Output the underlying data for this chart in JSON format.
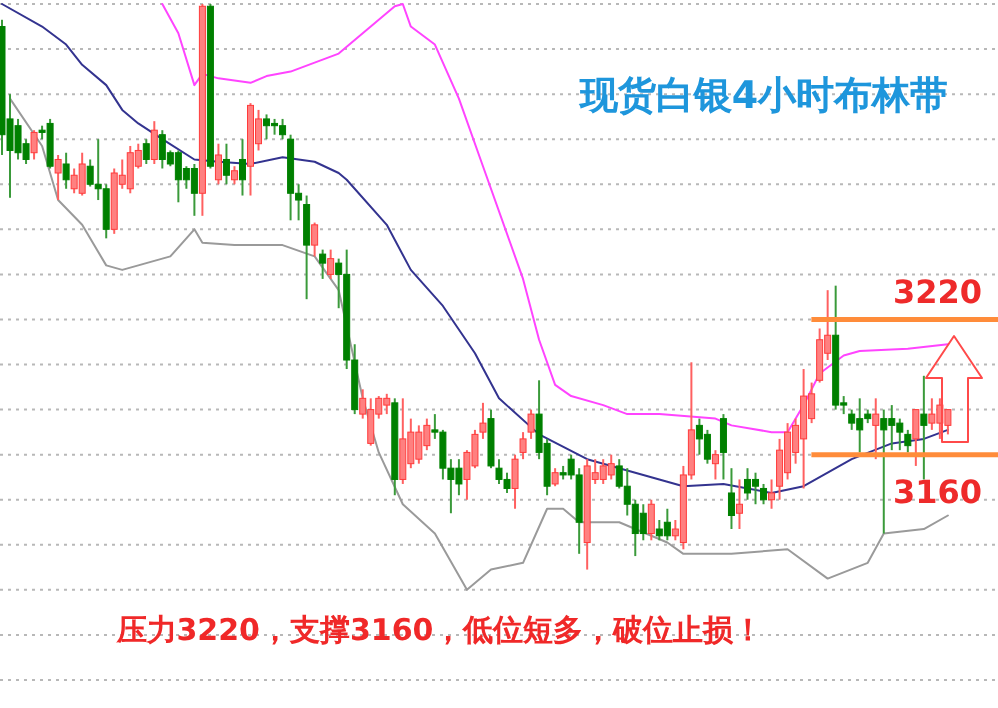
{
  "chart_data": {
    "type": "candlestick",
    "title": "现货白银4小时布林带",
    "categories": [
      null,
      null,
      null,
      null,
      null,
      null,
      null,
      null,
      null,
      null,
      null,
      null,
      null,
      null,
      null,
      null,
      null,
      null,
      null,
      null,
      null,
      null,
      null,
      null,
      null,
      null,
      null,
      null,
      null,
      null,
      null,
      null,
      null,
      null,
      null,
      null,
      null,
      null,
      null,
      null,
      null,
      null,
      null,
      null,
      null,
      null,
      null,
      null,
      null,
      null,
      null,
      null,
      null,
      null,
      null,
      null,
      null,
      null,
      null,
      null,
      null,
      null,
      null,
      null,
      null,
      null,
      null,
      null,
      null,
      null,
      null,
      null,
      null,
      null,
      null,
      null,
      null,
      null,
      null,
      null,
      null,
      null,
      null,
      null,
      null,
      null,
      null,
      null,
      null,
      null,
      null,
      null,
      null,
      null,
      null,
      null,
      null,
      null,
      null,
      null,
      null,
      null,
      null,
      null,
      null,
      null,
      null,
      null,
      null,
      null,
      null,
      null,
      null,
      null,
      null,
      null,
      null,
      null,
      null
    ],
    "ohlc": [
      [
        3350,
        3353,
        3293,
        3302
      ],
      [
        3309,
        3320,
        3274,
        3295
      ],
      [
        3306,
        3309,
        3291,
        3294
      ],
      [
        3298,
        3300,
        3289,
        3291
      ],
      [
        3294,
        3304,
        3291,
        3303
      ],
      [
        3304,
        3306,
        3300,
        3303
      ],
      [
        3307,
        3309,
        3287,
        3288
      ],
      [
        3285,
        3293,
        3273,
        3291
      ],
      [
        3289,
        3294,
        3278,
        3282
      ],
      [
        3278,
        3287,
        3276,
        3284
      ],
      [
        3276,
        3294,
        3275,
        3289
      ],
      [
        3288,
        3291,
        3279,
        3280
      ],
      [
        3280,
        3300,
        3273,
        3278
      ],
      [
        3278,
        3280,
        3256,
        3260
      ],
      [
        3260,
        3287,
        3258,
        3285
      ],
      [
        3280,
        3291,
        3278,
        3284
      ],
      [
        3278,
        3297,
        3276,
        3294
      ],
      [
        3288,
        3298,
        3287,
        3295
      ],
      [
        3298,
        3300,
        3289,
        3291
      ],
      [
        3291,
        3308,
        3289,
        3304
      ],
      [
        3302,
        3304,
        3287,
        3291
      ],
      [
        3294,
        3295,
        3288,
        3289
      ],
      [
        3294,
        3295,
        3272,
        3282
      ],
      [
        3287,
        3288,
        3278,
        3282
      ],
      [
        3287,
        3289,
        3266,
        3276
      ],
      [
        3276,
        3360,
        3266,
        3359
      ],
      [
        3359,
        3360,
        3287,
        3288
      ],
      [
        3282,
        3298,
        3280,
        3293
      ],
      [
        3291,
        3298,
        3280,
        3284
      ],
      [
        3282,
        3288,
        3280,
        3286
      ],
      [
        3291,
        3300,
        3275,
        3282
      ],
      [
        3288,
        3316,
        3275,
        3315
      ],
      [
        3298,
        3313,
        3295,
        3309
      ],
      [
        3309,
        3311,
        3300,
        3306
      ],
      [
        3307,
        3309,
        3302,
        3306
      ],
      [
        3306,
        3309,
        3300,
        3302
      ],
      [
        3300,
        3302,
        3264,
        3276
      ],
      [
        3276,
        3280,
        3264,
        3273
      ],
      [
        3271,
        3275,
        3229,
        3253
      ],
      [
        3253,
        3263,
        3248,
        3262
      ],
      [
        3249,
        3251,
        3238,
        3245
      ],
      [
        3240,
        3251,
        3238,
        3247
      ],
      [
        3245,
        3247,
        3225,
        3240
      ],
      [
        3240,
        3251,
        3198,
        3202
      ],
      [
        3202,
        3209,
        3178,
        3180
      ],
      [
        3178,
        3189,
        3176,
        3185
      ],
      [
        3165,
        3185,
        3164,
        3180
      ],
      [
        3178,
        3186,
        3176,
        3185
      ],
      [
        3182,
        3187,
        3178,
        3185
      ],
      [
        3183,
        3185,
        3142,
        3149
      ],
      [
        3149,
        3185,
        3147,
        3167
      ],
      [
        3156,
        3176,
        3154,
        3170
      ],
      [
        3158,
        3173,
        3156,
        3170
      ],
      [
        3164,
        3176,
        3162,
        3173
      ],
      [
        3171,
        3178,
        3167,
        3170
      ],
      [
        3170,
        3171,
        3149,
        3154
      ],
      [
        3154,
        3158,
        3134,
        3149
      ],
      [
        3154,
        3158,
        3142,
        3147
      ],
      [
        3149,
        3162,
        3140,
        3161
      ],
      [
        3155,
        3171,
        3154,
        3169
      ],
      [
        3170,
        3183,
        3167,
        3174
      ],
      [
        3176,
        3180,
        3154,
        3155
      ],
      [
        3154,
        3158,
        3147,
        3149
      ],
      [
        3149,
        3152,
        3143,
        3145
      ],
      [
        3145,
        3160,
        3136,
        3158
      ],
      [
        3161,
        3170,
        3158,
        3167
      ],
      [
        3170,
        3180,
        3167,
        3178
      ],
      [
        3178,
        3193,
        3158,
        3161
      ],
      [
        3165,
        3167,
        3142,
        3146
      ],
      [
        3147,
        3154,
        3146,
        3152
      ],
      [
        3152,
        3155,
        3149,
        3151
      ],
      [
        3158,
        3160,
        3149,
        3151
      ],
      [
        3151,
        3154,
        3116,
        3130
      ],
      [
        3121,
        3158,
        3109,
        3155
      ],
      [
        3149,
        3158,
        3147,
        3152
      ],
      [
        3149,
        3158,
        3147,
        3155
      ],
      [
        3151,
        3160,
        3149,
        3156
      ],
      [
        3155,
        3158,
        3145,
        3146
      ],
      [
        3146,
        3154,
        3133,
        3138
      ],
      [
        3138,
        3140,
        3115,
        3125
      ],
      [
        3134,
        3138,
        3122,
        3125
      ],
      [
        3125,
        3140,
        3122,
        3138
      ],
      [
        3127,
        3131,
        3122,
        3124
      ],
      [
        3130,
        3136,
        3122,
        3124
      ],
      [
        3124,
        3131,
        3122,
        3127
      ],
      [
        3121,
        3155,
        3118,
        3151
      ],
      [
        3151,
        3201,
        3149,
        3171
      ],
      [
        3173,
        3176,
        3160,
        3167
      ],
      [
        3169,
        3171,
        3156,
        3158
      ],
      [
        3156,
        3162,
        3149,
        3160
      ],
      [
        3176,
        3178,
        3149,
        3161
      ],
      [
        3143,
        3154,
        3127,
        3133
      ],
      [
        3134,
        3149,
        3127,
        3138
      ],
      [
        3149,
        3154,
        3140,
        3143
      ],
      [
        3149,
        3152,
        3138,
        3146
      ],
      [
        3145,
        3147,
        3138,
        3140
      ],
      [
        3140,
        3149,
        3136,
        3143
      ],
      [
        3146,
        3167,
        3140,
        3162
      ],
      [
        3152,
        3174,
        3149,
        3170
      ],
      [
        3161,
        3176,
        3156,
        3173
      ],
      [
        3167,
        3198,
        3145,
        3186
      ],
      [
        3176,
        3192,
        3174,
        3187
      ],
      [
        3193,
        3216,
        3192,
        3211
      ],
      [
        3205,
        3233,
        3202,
        3213
      ],
      [
        3213,
        3235,
        3180,
        3182
      ],
      [
        3183,
        3186,
        3178,
        3182
      ],
      [
        3178,
        3180,
        3171,
        3174
      ],
      [
        3176,
        3185,
        3161,
        3171
      ],
      [
        3178,
        3180,
        3174,
        3176
      ],
      [
        3173,
        3185,
        3158,
        3178
      ],
      [
        3176,
        3180,
        3125,
        3171
      ],
      [
        3176,
        3182,
        3162,
        3173
      ],
      [
        3174,
        3176,
        3162,
        3170
      ],
      [
        3169,
        3171,
        3161,
        3164
      ],
      [
        3167,
        3180,
        3155,
        3180
      ],
      [
        3178,
        3195,
        3149,
        3173
      ],
      [
        3174,
        3185,
        3171,
        3178
      ],
      [
        3174,
        3185,
        3167,
        3182
      ],
      [
        3173,
        3180,
        3169,
        3180
      ]
    ],
    "series": [
      {
        "type": "line",
        "color": "#ff44ff",
        "values": [
          null,
          null,
          null,
          null,
          null,
          null,
          null,
          null,
          null,
          null,
          null,
          null,
          null,
          null,
          null,
          null,
          null,
          null,
          null,
          null,
          3360,
          null,
          3347,
          null,
          3324,
          3329,
          null,
          3327,
          null,
          null,
          null,
          3325,
          null,
          3328,
          null,
          null,
          3330,
          null,
          null,
          3334,
          null,
          null,
          3338,
          null,
          null,
          null,
          3350,
          null,
          null,
          3359,
          3360,
          3350,
          null,
          null,
          3342,
          null,
          null,
          3318,
          null,
          null,
          3288,
          null,
          null,
          null,
          null,
          3238,
          null,
          3211,
          null,
          3191,
          null,
          3186,
          null,
          null,
          null,
          3182,
          null,
          null,
          3178,
          null,
          null,
          null,
          3178,
          null,
          null,
          null,
          null,
          null,
          null,
          3176,
          null,
          3173,
          null,
          null,
          null,
          null,
          3170,
          null,
          3170,
          null,
          3182,
          null,
          3196,
          null,
          null,
          3204,
          null,
          3206,
          null,
          null,
          null,
          null,
          null,
          3207,
          null,
          null,
          null,
          null,
          3209
        ]
      },
      {
        "type": "line",
        "color": "#33338f",
        "values": [
          3360,
          null,
          null,
          null,
          null,
          3350,
          null,
          null,
          3342,
          null,
          3333,
          null,
          null,
          3324,
          null,
          3313,
          null,
          3307,
          null,
          null,
          3300,
          null,
          null,
          null,
          3291,
          null,
          null,
          3290,
          null,
          null,
          null,
          3289,
          null,
          null,
          null,
          3292,
          null,
          null,
          null,
          3290,
          null,
          null,
          3285,
          3282,
          null,
          null,
          null,
          null,
          3262,
          null,
          null,
          3242,
          null,
          null,
          null,
          3226,
          null,
          null,
          null,
          3205,
          null,
          null,
          3185,
          null,
          null,
          null,
          null,
          3169,
          null,
          null,
          null,
          null,
          null,
          3158,
          null,
          null,
          null,
          3154,
          null,
          null,
          null,
          null,
          3149,
          null,
          null,
          3146,
          null,
          null,
          null,
          null,
          3147,
          null,
          null,
          null,
          null,
          null,
          3143,
          null,
          null,
          null,
          3146,
          null,
          null,
          3152,
          null,
          null,
          3158,
          null,
          null,
          null,
          null,
          3165,
          null,
          null,
          null,
          3167,
          null,
          null,
          3171
        ]
      },
      {
        "type": "line",
        "color": "#9a9a9a",
        "values": [
          null,
          3318,
          null,
          null,
          null,
          3297,
          null,
          3273,
          null,
          null,
          3262,
          null,
          null,
          3244,
          null,
          3242,
          null,
          3244,
          null,
          null,
          null,
          3248,
          null,
          null,
          3260,
          3254,
          null,
          null,
          null,
          3253,
          null,
          null,
          null,
          null,
          null,
          3253,
          null,
          null,
          null,
          3248,
          null,
          null,
          3233,
          null,
          null,
          3185,
          null,
          3161,
          null,
          null,
          3138,
          null,
          null,
          null,
          3125,
          null,
          null,
          null,
          3100,
          null,
          null,
          3109,
          null,
          null,
          null,
          3112,
          null,
          null,
          3136,
          null,
          3136,
          null,
          3130,
          null,
          null,
          null,
          null,
          3130,
          null,
          null,
          null,
          null,
          null,
          3121,
          null,
          3116,
          null,
          null,
          null,
          null,
          null,
          3116,
          null,
          null,
          null,
          null,
          null,
          null,
          3118,
          null,
          null,
          null,
          null,
          3105,
          null,
          null,
          null,
          null,
          3112,
          null,
          3125,
          null,
          null,
          null,
          null,
          3127,
          null,
          null,
          3133
        ]
      }
    ],
    "ylim": [
      3060,
      3360
    ],
    "yticks": [
      {
        "value": 3060,
        "label": null
      },
      {
        "value": 3080,
        "label": null
      },
      {
        "value": 3100,
        "label": null
      },
      {
        "value": 3120,
        "label": null
      },
      {
        "value": 3140,
        "label": null
      },
      {
        "value": 3160,
        "label": null
      },
      {
        "value": 3180,
        "label": null
      },
      {
        "value": 3200,
        "label": null
      },
      {
        "value": 3220,
        "label": null
      },
      {
        "value": 3240,
        "label": null
      },
      {
        "value": 3260,
        "label": null
      },
      {
        "value": 3280,
        "label": null
      },
      {
        "value": 3300,
        "label": null
      },
      {
        "value": 3320,
        "label": null
      },
      {
        "value": 3340,
        "label": null
      },
      {
        "value": 3360,
        "label": null
      }
    ],
    "tick_labels": false,
    "grid": "y",
    "marker": "none",
    "ref_lines": [
      {
        "axis": "y",
        "value": 3220,
        "label": "3220",
        "color": "#ff8c3a"
      },
      {
        "axis": "y",
        "value": 3160,
        "label": "3160",
        "color": "#ff8c3a"
      }
    ],
    "annotations": [
      "压力3220，支撑3160，低位短多，破位止损！"
    ]
  }
}
